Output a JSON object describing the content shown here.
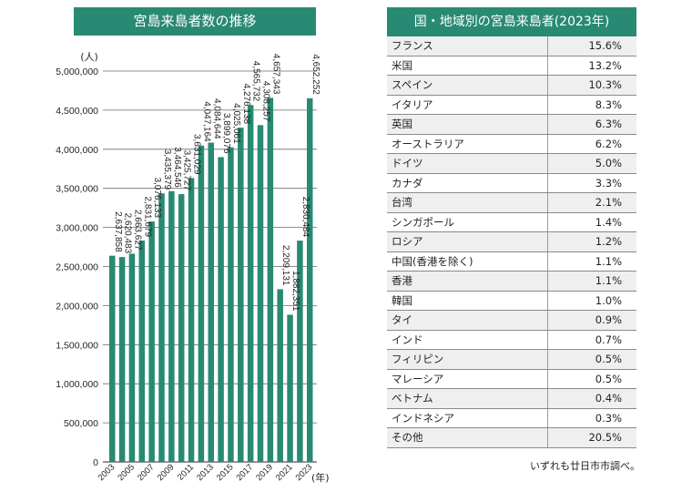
{
  "chart_data": {
    "type": "bar",
    "title": "宮島来島者数の推移",
    "ylabel": "(人)",
    "xlabel": "(年)",
    "ylim": [
      0,
      5000000
    ],
    "yticks": [
      0,
      500000,
      1000000,
      1500000,
      2000000,
      2500000,
      3000000,
      3500000,
      4000000,
      4500000,
      5000000
    ],
    "ytick_labels": [
      "0",
      "500,000",
      "1,000,000",
      "1,500,000",
      "2,000,000",
      "2,500,000",
      "3,000,000",
      "3,500,000",
      "4,000,000",
      "4,500,000",
      "5,000,000"
    ],
    "categories": [
      "2003",
      "2004",
      "2005",
      "2006",
      "2007",
      "2008",
      "2009",
      "2010",
      "2011",
      "2012",
      "2013",
      "2014",
      "2015",
      "2016",
      "2017",
      "2018",
      "2019",
      "2020",
      "2021",
      "2022",
      "2023"
    ],
    "xtick_labels": [
      "2003",
      "2005",
      "2007",
      "2009",
      "2011",
      "2013",
      "2015",
      "2017",
      "2019",
      "2021",
      "2023"
    ],
    "values": [
      2637858,
      2620483,
      2663627,
      2831679,
      3076133,
      3435379,
      3464546,
      3425727,
      3631029,
      4047164,
      4084644,
      3899076,
      4025061,
      4276138,
      4565732,
      4308257,
      4657343,
      2209131,
      1882351,
      2830484,
      4652252
    ],
    "value_labels": [
      "2,637,858",
      "2,620,483",
      "2,663,627",
      "2,831,679",
      "3,076,133",
      "3,435,379",
      "3,464,546",
      "3,425,727",
      "3,631,029",
      "4,047,164",
      "4,084,644",
      "3,899,076",
      "4,025,061",
      "4,276,138",
      "4,565,732",
      "4,308,257",
      "4,657,343",
      "2,209,131",
      "1,882,351",
      "2,830,484",
      "4,652,252"
    ],
    "grid": true,
    "bar_color": "#288a72"
  },
  "table": {
    "title": "国・地域別の宮島来島者(2023年)",
    "rows": [
      {
        "name": "フランス",
        "pct": "15.6%"
      },
      {
        "name": "米国",
        "pct": "13.2%"
      },
      {
        "name": "スペイン",
        "pct": "10.3%"
      },
      {
        "name": "イタリア",
        "pct": "8.3%"
      },
      {
        "name": "英国",
        "pct": "6.3%"
      },
      {
        "name": "オーストラリア",
        "pct": "6.2%"
      },
      {
        "name": "ドイツ",
        "pct": "5.0%"
      },
      {
        "name": "カナダ",
        "pct": "3.3%"
      },
      {
        "name": "台湾",
        "pct": "2.1%"
      },
      {
        "name": "シンガポール",
        "pct": "1.4%"
      },
      {
        "name": "ロシア",
        "pct": "1.2%"
      },
      {
        "name": "中国(香港を除く)",
        "pct": "1.1%"
      },
      {
        "name": "香港",
        "pct": "1.1%"
      },
      {
        "name": "韓国",
        "pct": "1.0%"
      },
      {
        "name": "タイ",
        "pct": "0.9%"
      },
      {
        "name": "インド",
        "pct": "0.7%"
      },
      {
        "name": "フィリピン",
        "pct": "0.5%"
      },
      {
        "name": "マレーシア",
        "pct": "0.5%"
      },
      {
        "name": "ベトナム",
        "pct": "0.4%"
      },
      {
        "name": "インドネシア",
        "pct": "0.3%"
      },
      {
        "name": "その他",
        "pct": "20.5%"
      }
    ],
    "note": "いずれも廿日市市調べ。",
    "header_color": "#288a72"
  }
}
